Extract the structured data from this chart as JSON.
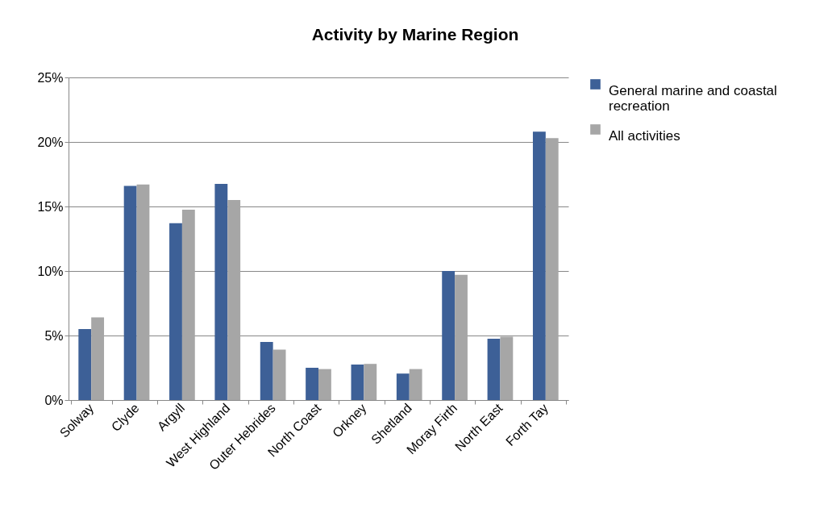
{
  "chart_data": {
    "type": "bar",
    "title": "Activity by Marine Region",
    "categories": [
      "Solway",
      "Clyde",
      "Argyll",
      "West Highland",
      "Outer Hebrides",
      "North Coast",
      "Orkney",
      "Shetland",
      "Moray Firth",
      "North East",
      "Forth Tay"
    ],
    "series": [
      {
        "name": "General marine and coastal recreation",
        "color": "#3d6097",
        "values": [
          5.5,
          16.6,
          13.7,
          16.75,
          4.5,
          2.5,
          2.75,
          2.05,
          10.0,
          4.75,
          20.8
        ]
      },
      {
        "name": "All activities",
        "color": "#a6a6a6",
        "values": [
          6.4,
          16.7,
          14.75,
          15.5,
          3.9,
          2.4,
          2.8,
          2.4,
          9.7,
          4.9,
          20.3
        ]
      }
    ],
    "ylim": [
      0,
      25
    ],
    "yticks": [
      {
        "value": 0,
        "label": "0%"
      },
      {
        "value": 5,
        "label": "5%"
      },
      {
        "value": 10,
        "label": "10%"
      },
      {
        "value": 15,
        "label": "15%"
      },
      {
        "value": 20,
        "label": "20%"
      },
      {
        "value": 25,
        "label": "25%"
      }
    ],
    "grid": "y",
    "legend": "right"
  }
}
